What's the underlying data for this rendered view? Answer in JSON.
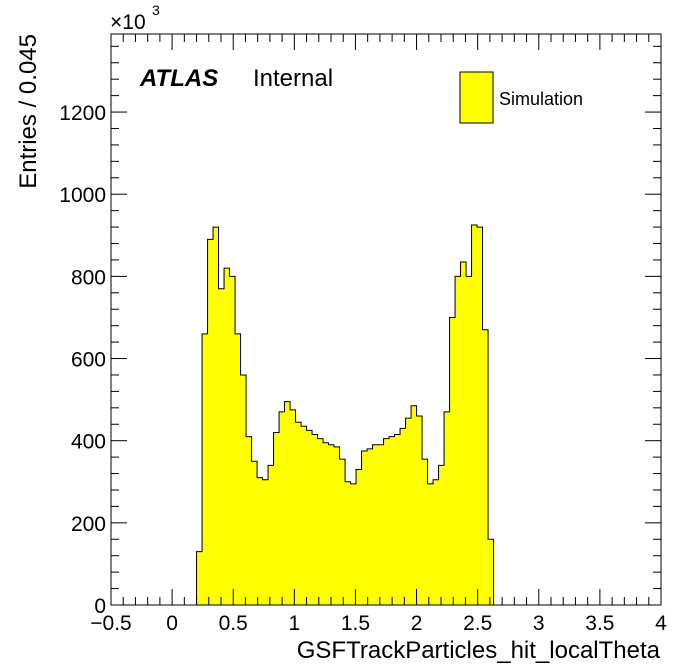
{
  "chart_data": {
    "type": "histogram",
    "title": "",
    "xlabel": "GSFTrackParticles_hit_localTheta",
    "ylabel": "Entries / 0.045",
    "y_multiplier": "×10",
    "y_multiplier_exponent": "3",
    "xlim": [
      -0.5,
      4.0
    ],
    "ylim": [
      0,
      1390
    ],
    "xticks": [
      -0.5,
      0,
      0.5,
      1,
      1.5,
      2,
      2.5,
      3,
      3.5,
      4
    ],
    "xtick_labels": [
      "−0.5",
      "0",
      "0.5",
      "1",
      "1.5",
      "2",
      "2.5",
      "3",
      "3.5",
      "4"
    ],
    "yticks": [
      0,
      200,
      400,
      600,
      800,
      1000,
      1200
    ],
    "ytick_labels": [
      "0",
      "200",
      "400",
      "600",
      "800",
      "1000",
      "1200"
    ],
    "bin_width": 0.045,
    "bin_start": 0.2,
    "series": [
      {
        "name": "Simulation",
        "color": "#ffff00",
        "edge_color": "#000000",
        "values": [
          130,
          660,
          890,
          920,
          770,
          820,
          800,
          660,
          560,
          410,
          350,
          310,
          305,
          340,
          420,
          470,
          495,
          475,
          445,
          435,
          425,
          415,
          405,
          395,
          390,
          385,
          355,
          300,
          295,
          330,
          375,
          380,
          390,
          390,
          405,
          410,
          415,
          430,
          455,
          485,
          460,
          355,
          295,
          305,
          340,
          470,
          700,
          800,
          835,
          800,
          925,
          920,
          670,
          160
        ]
      }
    ],
    "grid": false,
    "legend": "top-right"
  },
  "labels": {
    "experiment": "ATLAS",
    "status": "Internal"
  }
}
